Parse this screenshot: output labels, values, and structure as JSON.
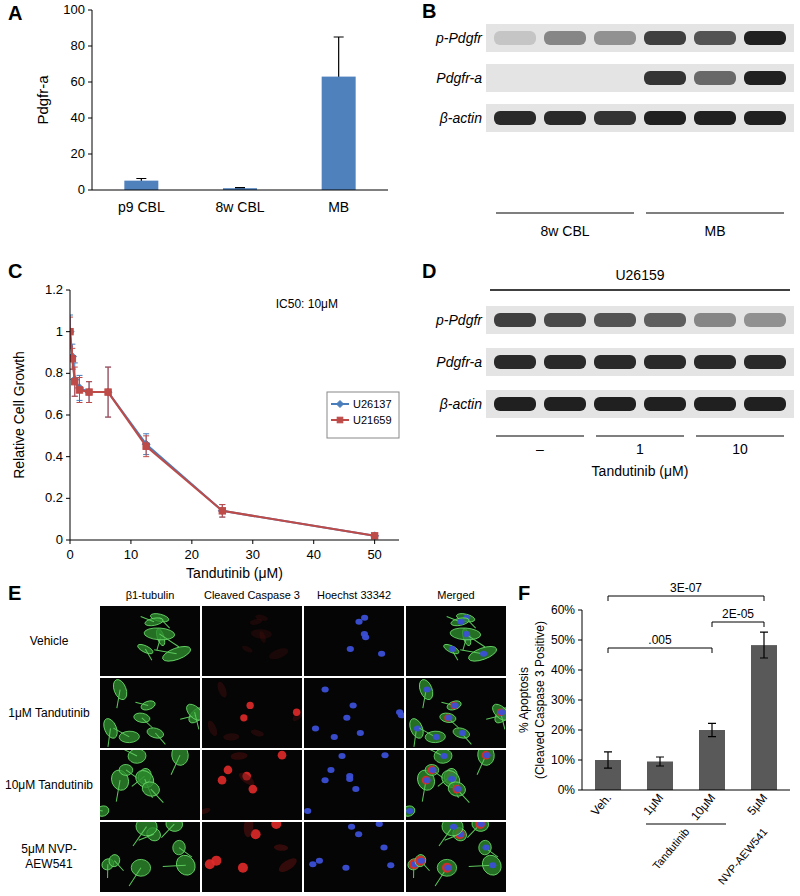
{
  "chart_data": [
    {
      "type": "bar",
      "title": "A",
      "ylabel": "Pdgfr-a",
      "categories": [
        "p9 CBL",
        "8w CBL",
        "MB"
      ],
      "values": [
        5.2,
        1,
        63
      ],
      "errors": [
        1.2,
        0.3,
        22
      ],
      "color": "#4f81bd",
      "ylim": [
        0,
        100
      ],
      "yticks": [
        0,
        20,
        40,
        60,
        80,
        100
      ],
      "grid": false
    },
    {
      "type": "blot",
      "title": "B",
      "series": [
        {
          "name": "p-Pdgfr",
          "values": [
            0.15,
            0.45,
            0.4,
            0.8,
            0.7,
            0.95
          ]
        },
        {
          "name": "Pdgfr-a",
          "values": [
            0,
            0,
            0,
            0.85,
            0.6,
            0.95
          ]
        },
        {
          "name": "β-actin",
          "values": [
            0.9,
            0.9,
            0.85,
            0.95,
            0.95,
            0.95
          ]
        }
      ],
      "groups": [
        {
          "label": "8w CBL",
          "lanes": 3
        },
        {
          "label": "MB",
          "lanes": 3
        }
      ]
    },
    {
      "type": "line",
      "title": "C",
      "xlabel": "Tandutinib (μM)",
      "ylabel": "Relative Cell Growth",
      "annotations": [
        {
          "label": "IC50: 10μM"
        }
      ],
      "x": [
        0,
        0.39,
        0.78,
        1.56,
        3.13,
        6.25,
        12.5,
        25,
        50
      ],
      "series": [
        {
          "name": "U26137",
          "color": "#4a7ebb",
          "marker": "diamond",
          "values": [
            1,
            0.88,
            0.77,
            0.73,
            0.71,
            0.71,
            0.46,
            0.14,
            0.02
          ],
          "errors": [
            0.08,
            0.06,
            0.08,
            0.06,
            0.05,
            0.12,
            0.05,
            0.03,
            0.01
          ]
        },
        {
          "name": "U21659",
          "color": "#be4b48",
          "marker": "square",
          "values": [
            1,
            0.87,
            0.76,
            0.72,
            0.71,
            0.71,
            0.45,
            0.14,
            0.02
          ],
          "errors": [
            0.07,
            0.05,
            0.07,
            0.06,
            0.05,
            0.12,
            0.05,
            0.03,
            0.01
          ]
        }
      ],
      "xlim": [
        0,
        54
      ],
      "xticks": [
        0,
        10,
        20,
        30,
        40,
        50
      ],
      "ylim": [
        0,
        1.2
      ],
      "yticks": [
        0,
        0.2,
        0.4,
        0.6,
        0.8,
        1,
        1.2
      ],
      "legend": "right",
      "grid": false
    },
    {
      "type": "blot",
      "title": "D",
      "subtitle": "U26159",
      "xlabel": "Tandutinib (μM)",
      "series": [
        {
          "name": "p-Pdgfr",
          "values": [
            0.8,
            0.75,
            0.7,
            0.65,
            0.45,
            0.4
          ]
        },
        {
          "name": "Pdgfr-a",
          "values": [
            0.9,
            0.9,
            0.9,
            0.9,
            0.9,
            0.9
          ]
        },
        {
          "name": "β-actin",
          "values": [
            0.95,
            0.95,
            0.95,
            0.95,
            0.95,
            0.95
          ]
        }
      ],
      "groups": [
        {
          "label": "–",
          "lanes": 2
        },
        {
          "label": "1",
          "lanes": 2
        },
        {
          "label": "10",
          "lanes": 2
        }
      ]
    },
    {
      "type": "image_grid",
      "title": "E",
      "columns": [
        "β1-tubulin",
        "Cleaved Caspase 3",
        "Hoechst 33342",
        "Merged"
      ],
      "rows": [
        "Vehicle",
        "1μM Tandutinib",
        "10μM Tandutinib",
        "5μM NVP-AEW541"
      ]
    },
    {
      "type": "bar",
      "title": "F",
      "ylabel": [
        "% Apoptosis",
        "(Cleaved Caspase 3 Positive)"
      ],
      "categories": [
        "Veh.",
        "1μM",
        "10μM",
        "5μM"
      ],
      "values": [
        10,
        9.5,
        20,
        48.3
      ],
      "errors": [
        2.7,
        1.5,
        2.2,
        4.3
      ],
      "color": "#595959",
      "ylim": [
        0,
        60
      ],
      "yticks": [
        {
          "value": 0,
          "label": "0%"
        },
        {
          "value": 10,
          "label": "10%"
        },
        {
          "value": 20,
          "label": "20%"
        },
        {
          "value": 30,
          "label": "30%"
        },
        {
          "value": 40,
          "label": "40%"
        },
        {
          "value": 50,
          "label": "50%"
        },
        {
          "value": 60,
          "label": "60%"
        }
      ],
      "grid": false,
      "category_groups": [
        {
          "label": "Tandutinib",
          "categories": [
            1,
            2
          ]
        },
        {
          "label": "NVP-AEW541",
          "categories": [
            3
          ]
        }
      ],
      "annotations": [
        {
          "label": "3E-07",
          "from": 0,
          "to": 3
        },
        {
          "label": "2E-05",
          "from": 2,
          "to": 3
        },
        {
          "label": ".005",
          "from": 0,
          "to": 2
        }
      ]
    }
  ]
}
